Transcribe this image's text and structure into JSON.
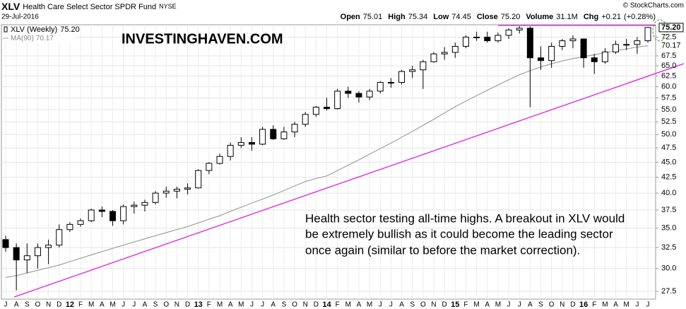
{
  "chart_data": {
    "type": "candlestick",
    "symbol": "XLV",
    "title": "Health Care Select Sector SPDR Fund",
    "exchange": "NYSE",
    "date": "29-Jul-2016",
    "copyright": "© StockCharts.com",
    "quote": {
      "names": [
        "Open",
        "High",
        "Low",
        "Close",
        "Volume",
        "Chg"
      ],
      "values": [
        75.01,
        75.34,
        74.45,
        75.2,
        31100000,
        0.21
      ],
      "value_labels": [
        "75.01",
        "75.34",
        "74.45",
        "75.20",
        "31.1M",
        "+0.21"
      ],
      "change_pct": {
        "value": 0.28,
        "label": "(+0.28%)"
      }
    },
    "watermark": "INVESTINGHAVEN.COM",
    "annotation": [
      "Health sector testing all-time highs. A breakout in XLV would",
      "be extremely bullish as it could become the leading sector",
      "once again (similar to before the market correction)."
    ],
    "categories": [
      "J",
      "A",
      "S",
      "O",
      "N",
      "D",
      "12",
      "F",
      "M",
      "A",
      "M",
      "J",
      "J",
      "A",
      "S",
      "O",
      "N",
      "D",
      "13",
      "F",
      "M",
      "A",
      "M",
      "J",
      "J",
      "A",
      "S",
      "O",
      "N",
      "D",
      "14",
      "F",
      "M",
      "A",
      "M",
      "J",
      "J",
      "A",
      "S",
      "O",
      "N",
      "D",
      "15",
      "F",
      "M",
      "A",
      "M",
      "J",
      "J",
      "A",
      "S",
      "O",
      "N",
      "D",
      "16",
      "F",
      "M",
      "A",
      "M",
      "J",
      "J"
    ],
    "series": [
      {
        "name": "XLV (Weekly)",
        "color": "#000000",
        "open": [
          33.5,
          32.5,
          31,
          31.5,
          32.5,
          32.8,
          34.8,
          35.5,
          36,
          37.5,
          37.3,
          36,
          38,
          38.2,
          38.6,
          40,
          40.3,
          40.6,
          40.8,
          43.6,
          44.8,
          46,
          48,
          48.5,
          48.2,
          51,
          49.2,
          50.5,
          52,
          54,
          55.5,
          55.2,
          59,
          58.5,
          57.7,
          59,
          61,
          61,
          63.6,
          64,
          66,
          68,
          68.4,
          70,
          72.5,
          72.5,
          71.5,
          73,
          74.5,
          75,
          67,
          66.3,
          70,
          71.5,
          72,
          67,
          66,
          68.5,
          70.5,
          70.5,
          71.5
        ],
        "high": [
          34,
          33,
          33,
          33,
          33.5,
          35.5,
          35.8,
          36.3,
          37.7,
          38,
          37.5,
          38.3,
          38.7,
          39,
          40.3,
          41,
          41,
          41.5,
          43.8,
          45,
          46.5,
          48.5,
          49.5,
          49.5,
          51.5,
          51.8,
          51.5,
          52.5,
          54.5,
          55.8,
          57.5,
          59.5,
          60,
          59,
          59.5,
          61.3,
          62,
          64,
          65,
          66.5,
          68.5,
          69.8,
          71,
          73,
          74,
          74,
          73.8,
          75,
          75.6,
          75.5,
          70,
          71,
          72,
          73,
          72,
          68,
          69.5,
          71.5,
          72,
          72.5,
          75.34
        ],
        "low": [
          32,
          27.6,
          29.5,
          30,
          30.5,
          32.5,
          34.5,
          35.2,
          35.8,
          36.5,
          35.3,
          35.5,
          37,
          37.3,
          38.3,
          39.3,
          39.2,
          39.8,
          40.7,
          43,
          44.6,
          45.3,
          47.5,
          47,
          48,
          49,
          49,
          49.5,
          51.5,
          53.5,
          54.8,
          55,
          57.5,
          56.5,
          57,
          58.5,
          59.8,
          60.5,
          62,
          59.5,
          65.8,
          66.5,
          67,
          69.5,
          71.5,
          71,
          71,
          72,
          73.5,
          55.5,
          64,
          64.5,
          69,
          69.5,
          64.5,
          63,
          65.5,
          68,
          69,
          68,
          71
        ],
        "close": [
          32.5,
          31,
          31.5,
          32.5,
          32.8,
          34.8,
          35.5,
          36,
          37.5,
          37.3,
          36,
          38,
          38.2,
          38.6,
          40,
          40.3,
          40.6,
          40.8,
          43.6,
          44.8,
          46,
          48,
          48.5,
          48.2,
          51,
          49.2,
          50.5,
          52,
          54,
          55.5,
          55.2,
          59,
          58.5,
          57.7,
          59,
          61,
          61,
          63.6,
          64,
          66,
          68,
          68.4,
          70,
          72.5,
          72.5,
          71.5,
          73,
          74.5,
          75,
          67,
          66.3,
          70,
          71.5,
          72,
          67,
          66,
          68.5,
          70.5,
          70.5,
          71.5,
          75.2
        ]
      },
      {
        "name": "MA(90)",
        "color": "#a0a0a0",
        "values": [
          29.0,
          29.2,
          29.5,
          29.8,
          30.1,
          30.4,
          30.8,
          31.2,
          31.6,
          32.0,
          32.4,
          32.8,
          33.2,
          33.6,
          34.0,
          34.4,
          34.8,
          35.2,
          35.7,
          36.2,
          36.7,
          37.3,
          37.9,
          38.5,
          39.1,
          39.7,
          40.4,
          41.1,
          41.8,
          42.3,
          42.7,
          43.6,
          44.5,
          45.4,
          46.4,
          47.4,
          48.4,
          49.5,
          50.6,
          51.8,
          53.0,
          54.3,
          55.6,
          56.8,
          58.0,
          59.2,
          60.4,
          61.6,
          62.8,
          63.8,
          64.7,
          65.5,
          66.2,
          66.8,
          67.3,
          67.8,
          68.3,
          68.8,
          69.3,
          69.8,
          70.17
        ]
      }
    ],
    "price_label": {
      "value": 75.2,
      "label": "75.20"
    },
    "ma_label": {
      "value": 70.17,
      "label": "70.17"
    },
    "log_scale": true,
    "ylim": [
      26.7,
      76.0
    ],
    "yticks": [
      27.5,
      {
        "value": 30,
        "label": "30.0"
      },
      32.5,
      {
        "value": 35,
        "label": "35.0"
      },
      37.5,
      {
        "value": 40,
        "label": "40.0"
      },
      42.5,
      {
        "value": 45,
        "label": "45.0"
      },
      47.5,
      {
        "value": 50,
        "label": "50.0"
      },
      52.5,
      {
        "value": 55,
        "label": "55.0"
      },
      57.5,
      {
        "value": 60,
        "label": "60.0"
      },
      62.5,
      {
        "value": 65,
        "label": "65.0"
      },
      67.5,
      72.5
    ],
    "grid": true
  }
}
